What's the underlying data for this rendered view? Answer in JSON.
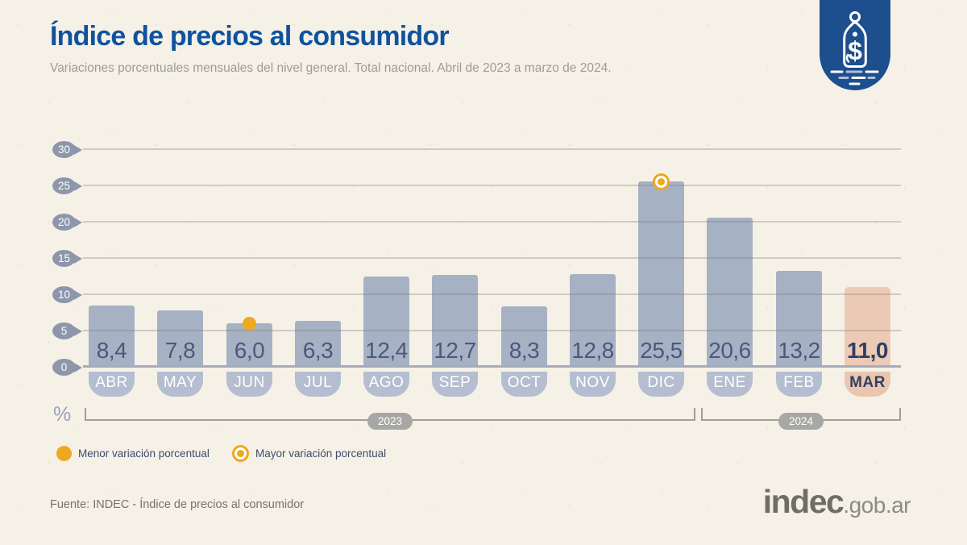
{
  "header": {
    "title": "Índice de precios al consumidor",
    "subtitle": "Variaciones porcentuales mensuales del nivel general. Total nacional. Abril de 2023 a marzo de 2024."
  },
  "logo_badge": {
    "icon": "price-tag-dollar-icon",
    "color": "#1d4e8d"
  },
  "chart_data": {
    "type": "bar",
    "title": "Índice de precios al consumidor",
    "subtitle": "Variaciones porcentuales mensuales del nivel general. Total nacional. Abril de 2023 a marzo de 2024.",
    "unit_label": "%",
    "categories": [
      "ABR",
      "MAY",
      "JUN",
      "JUL",
      "AGO",
      "SEP",
      "OCT",
      "NOV",
      "DIC",
      "ENE",
      "FEB",
      "MAR"
    ],
    "values": [
      8.4,
      7.8,
      6.0,
      6.3,
      12.4,
      12.7,
      8.3,
      12.8,
      25.5,
      20.6,
      13.2,
      11.0
    ],
    "value_labels": [
      "8,4",
      "7,8",
      "6,0",
      "6,3",
      "12,4",
      "12,7",
      "8,3",
      "12,8",
      "25,5",
      "20,6",
      "13,2",
      "11,0"
    ],
    "ylim": [
      0,
      30
    ],
    "yticks": [
      0,
      5,
      10,
      15,
      20,
      25,
      30
    ],
    "grid": true,
    "highlight_index": 11,
    "min_marker": {
      "index": 2,
      "style": "solid-dot"
    },
    "max_marker": {
      "index": 8,
      "style": "ring-dot"
    },
    "year_groups": [
      {
        "label": "2023",
        "start": 0,
        "end": 8
      },
      {
        "label": "2024",
        "start": 9,
        "end": 11
      }
    ],
    "colors": {
      "bar": "#a7b1c4",
      "bar_highlight": "#edcab5",
      "month_badge": "#b4bed0",
      "month_badge_highlight": "#ebc6af",
      "value_text": "#4a597b",
      "value_text_highlight": "#2f3f66",
      "axis_badge": "#8e96ab",
      "baseline": "#a5abba",
      "marker_yellow": "#eda91f",
      "year_pill": "#a7a7a5",
      "title_blue": "#0f539f"
    }
  },
  "legend": {
    "items": [
      {
        "marker": "solid-dot",
        "label": "Menor variación porcentual"
      },
      {
        "marker": "ring-dot",
        "label": "Mayor variación porcentual"
      }
    ]
  },
  "footer": {
    "source": "Fuente: INDEC - Índice de precios al consumidor",
    "brand": "indec",
    "brand_suffix": ".gob.ar"
  }
}
